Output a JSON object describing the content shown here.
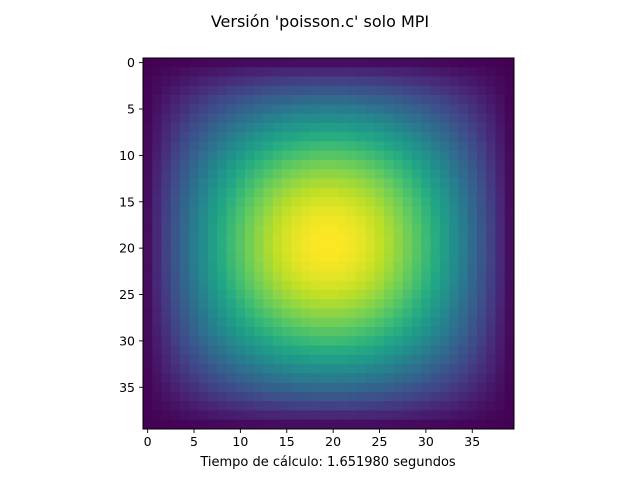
{
  "chart_data": {
    "type": "heatmap",
    "title": "Versión 'poisson.c' solo MPI",
    "xlabel": "Tiempo de cálculo: 1.651980 segundos",
    "ylabel": "",
    "colormap": "viridis",
    "grid": false,
    "rows": 40,
    "cols": 40,
    "xlim": [
      -0.5,
      39.5
    ],
    "ylim": [
      39.5,
      -0.5
    ],
    "x_ticks": [
      0,
      5,
      10,
      15,
      20,
      25,
      30,
      35
    ],
    "y_ticks": [
      0,
      5,
      10,
      15,
      20,
      25,
      30,
      35
    ],
    "peak": [
      19.5,
      19.5
    ],
    "field": "product of sine profiles, zero on the boundary, maximum at the center"
  }
}
